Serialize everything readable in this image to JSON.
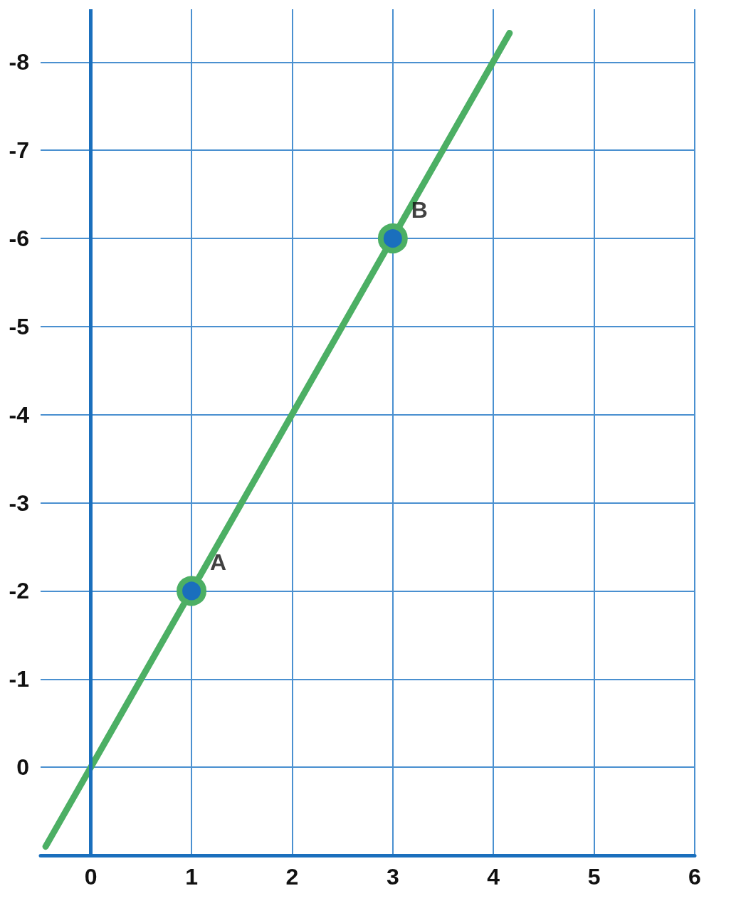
{
  "chart_data": {
    "type": "line",
    "series": [
      {
        "type": "line",
        "color": "#4caf64",
        "x": [
          -0.45,
          4.16
        ],
        "values": [
          0.9,
          -8.33
        ],
        "marker": "none"
      },
      {
        "type": "scatter",
        "color": "#1a6fbd",
        "x": [
          1,
          3
        ],
        "values": [
          -2,
          -6
        ],
        "marker": "circle"
      }
    ],
    "annotations": [
      {
        "text": "A",
        "x": 1,
        "y": -2
      },
      {
        "text": "B",
        "x": 3,
        "y": -6
      }
    ],
    "xlim": [
      -0.5,
      6
    ],
    "xticks": [
      0,
      1,
      2,
      3,
      4,
      5,
      6
    ],
    "ylim": [
      1,
      -8.6
    ],
    "yticks": [
      0,
      -1,
      -2,
      -3,
      -4,
      -5,
      -6,
      -7,
      -8
    ],
    "ref_lines": [
      {
        "axis": "x",
        "value": 0,
        "color": "#1a6fbd"
      }
    ],
    "grid": true
  }
}
